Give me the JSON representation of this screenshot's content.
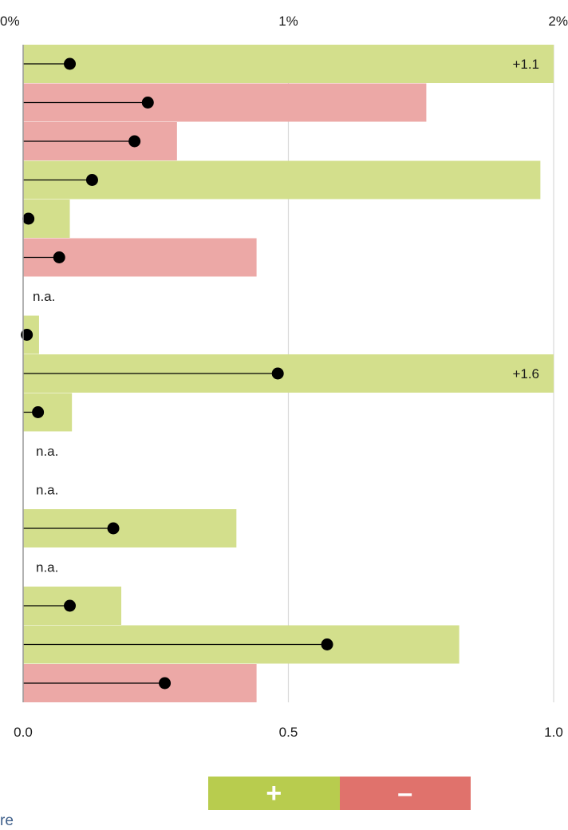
{
  "partial_text": "re",
  "legend": {
    "positive": {
      "label": "+",
      "color": "#b8cc4e"
    },
    "negative": {
      "label": "–",
      "color": "#e0726c"
    }
  },
  "chart_data": {
    "type": "bar",
    "title": "",
    "top_axis": {
      "range": [
        0,
        2
      ],
      "ticks": [
        "0%",
        "1%",
        "2%"
      ]
    },
    "bottom_axis": {
      "range": [
        0,
        1.0
      ],
      "ticks": [
        "0.0",
        "0.5",
        "1.0"
      ]
    },
    "grid": true,
    "colors": {
      "positive": "#d3df8c",
      "negative": "#eca8a6",
      "dot": "#000000",
      "grid": "#d9d9d9"
    },
    "rows": [
      {
        "bar": 1.0,
        "sign": "positive",
        "bar_label": "+1.1",
        "dot": 0.088
      },
      {
        "bar": 0.76,
        "sign": "negative",
        "dot": 0.235
      },
      {
        "bar": 0.29,
        "sign": "negative",
        "dot": 0.21
      },
      {
        "bar": 0.975,
        "sign": "positive",
        "dot": 0.13
      },
      {
        "bar": 0.088,
        "sign": "positive",
        "dot": 0.01
      },
      {
        "bar": 0.44,
        "sign": "negative",
        "dot": 0.068
      },
      {
        "bar": null,
        "na_label": "n.a."
      },
      {
        "bar": 0.03,
        "sign": "positive",
        "dot": 0.007
      },
      {
        "bar": 1.0,
        "sign": "positive",
        "bar_label": "+1.6",
        "dot": 0.48
      },
      {
        "bar": 0.092,
        "sign": "positive",
        "dot": 0.028
      },
      {
        "bar": null,
        "na_label": "n.a."
      },
      {
        "bar": null,
        "na_label": "n.a."
      },
      {
        "bar": 0.402,
        "sign": "positive",
        "dot": 0.17
      },
      {
        "bar": null,
        "na_label": "n.a."
      },
      {
        "bar": 0.185,
        "sign": "positive",
        "dot": 0.088
      },
      {
        "bar": 0.822,
        "sign": "positive",
        "dot": 0.573
      },
      {
        "bar": 0.44,
        "sign": "negative",
        "dot": 0.267
      }
    ]
  }
}
